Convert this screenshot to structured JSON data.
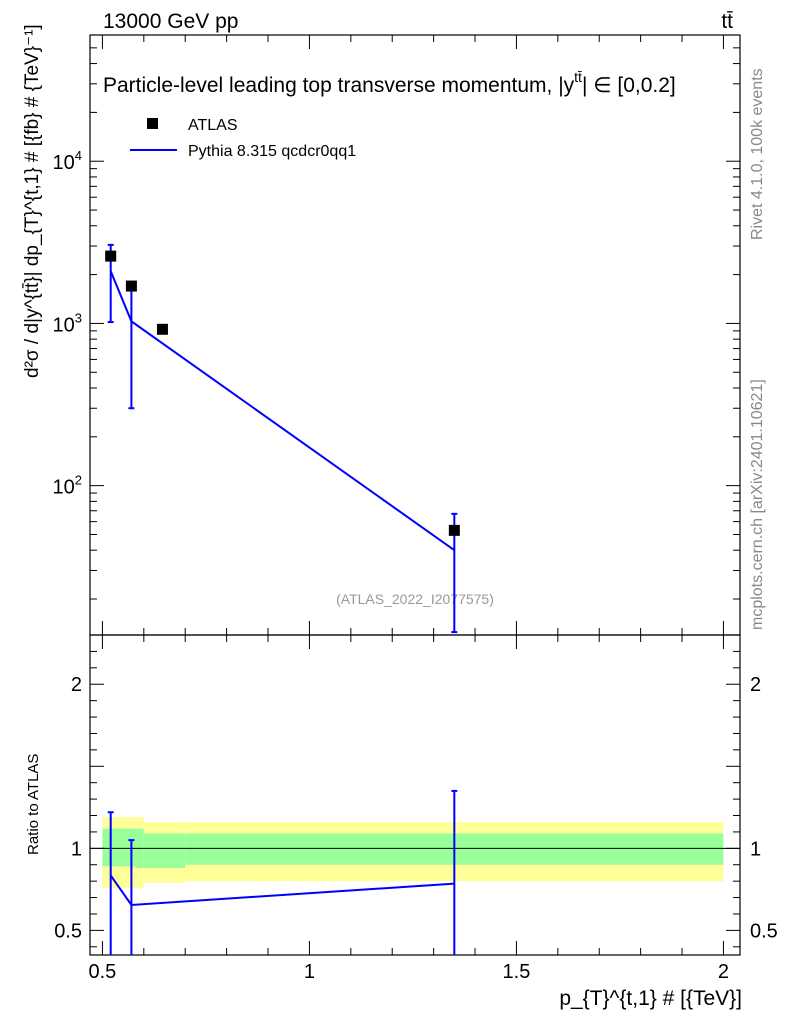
{
  "header": {
    "left": "13000 GeV pp",
    "right": "tt̄"
  },
  "side_text": {
    "rivet": "Rivet 4.1.0,  100k events",
    "mcplots": "mcplots.cern.ch [arXiv:2401.10621]"
  },
  "chart_data": {
    "type": "scatter",
    "title": "Particle-level leading top transverse momentum, |y^{tt̄}| ∈ [0,0.2]",
    "title_prefix": "Particle-level leading top transverse momentum, |y",
    "title_sup": "tt̄",
    "title_suffix": "| ∈ [0,0.2]",
    "watermark": "(ATLAS_2022_I2077575)",
    "xlabel": "p_{T}^{t,1} # [{TeV}]",
    "ylabel": "d²σ / d|y^{tt̄}| dp_{T}^{t,1} # [{fb} # {TeV}⁻¹]",
    "ratio_ylabel": "Ratio to ATLAS",
    "xlim": [
      0.47,
      2.04
    ],
    "ylim": [
      12,
      60000
    ],
    "ratio_ylim": [
      0.35,
      2.3
    ],
    "x_ticks": [
      0.5,
      1,
      1.5,
      2
    ],
    "x_tick_labels": [
      "0.5",
      "1",
      "1.5",
      "2"
    ],
    "y_ticks": [
      100,
      1000,
      10000
    ],
    "y_tick_labels": [
      "10",
      "10",
      "10"
    ],
    "y_tick_exponents": [
      "2",
      "3",
      "4"
    ],
    "ratio_ticks": [
      0.5,
      1,
      2
    ],
    "ratio_tick_labels": [
      "0.5",
      "1",
      "2"
    ],
    "series": [
      {
        "name": "ATLAS",
        "style": "markers",
        "color": "#000000",
        "x": [
          0.52,
          0.57,
          0.645,
          1.35
        ],
        "y": [
          2600,
          1700,
          920,
          53
        ]
      },
      {
        "name": "Pythia 8.315 qcdcr0qq1",
        "style": "line",
        "color": "#0000ff",
        "x": [
          0.52,
          0.57,
          1.35
        ],
        "y": [
          2100,
          1030,
          40
        ],
        "yerr_low": [
          1020,
          300,
          12.5
        ],
        "yerr_high": [
          3050,
          1700,
          67
        ],
        "ratio": [
          0.835,
          0.655,
          0.785
        ],
        "ratio_err_low": [
          0.3,
          0.3,
          0.3
        ],
        "ratio_err_high": [
          1.22,
          1.05,
          1.35
        ]
      }
    ],
    "bands": [
      {
        "x_from": 0.5,
        "x_to": 0.58,
        "inner": [
          0.89,
          1.12
        ],
        "outer": [
          0.76,
          1.19
        ]
      },
      {
        "x_from": 0.58,
        "x_to": 0.6,
        "inner": [
          0.88,
          1.12
        ],
        "outer": [
          0.76,
          1.19
        ]
      },
      {
        "x_from": 0.6,
        "x_to": 0.7,
        "inner": [
          0.88,
          1.09
        ],
        "outer": [
          0.79,
          1.16
        ]
      },
      {
        "x_from": 0.7,
        "x_to": 2.0,
        "inner": [
          0.9,
          1.09
        ],
        "outer": [
          0.8,
          1.16
        ]
      }
    ],
    "band_colors": {
      "inner": "#99ff99",
      "outer": "#ffff99"
    }
  }
}
